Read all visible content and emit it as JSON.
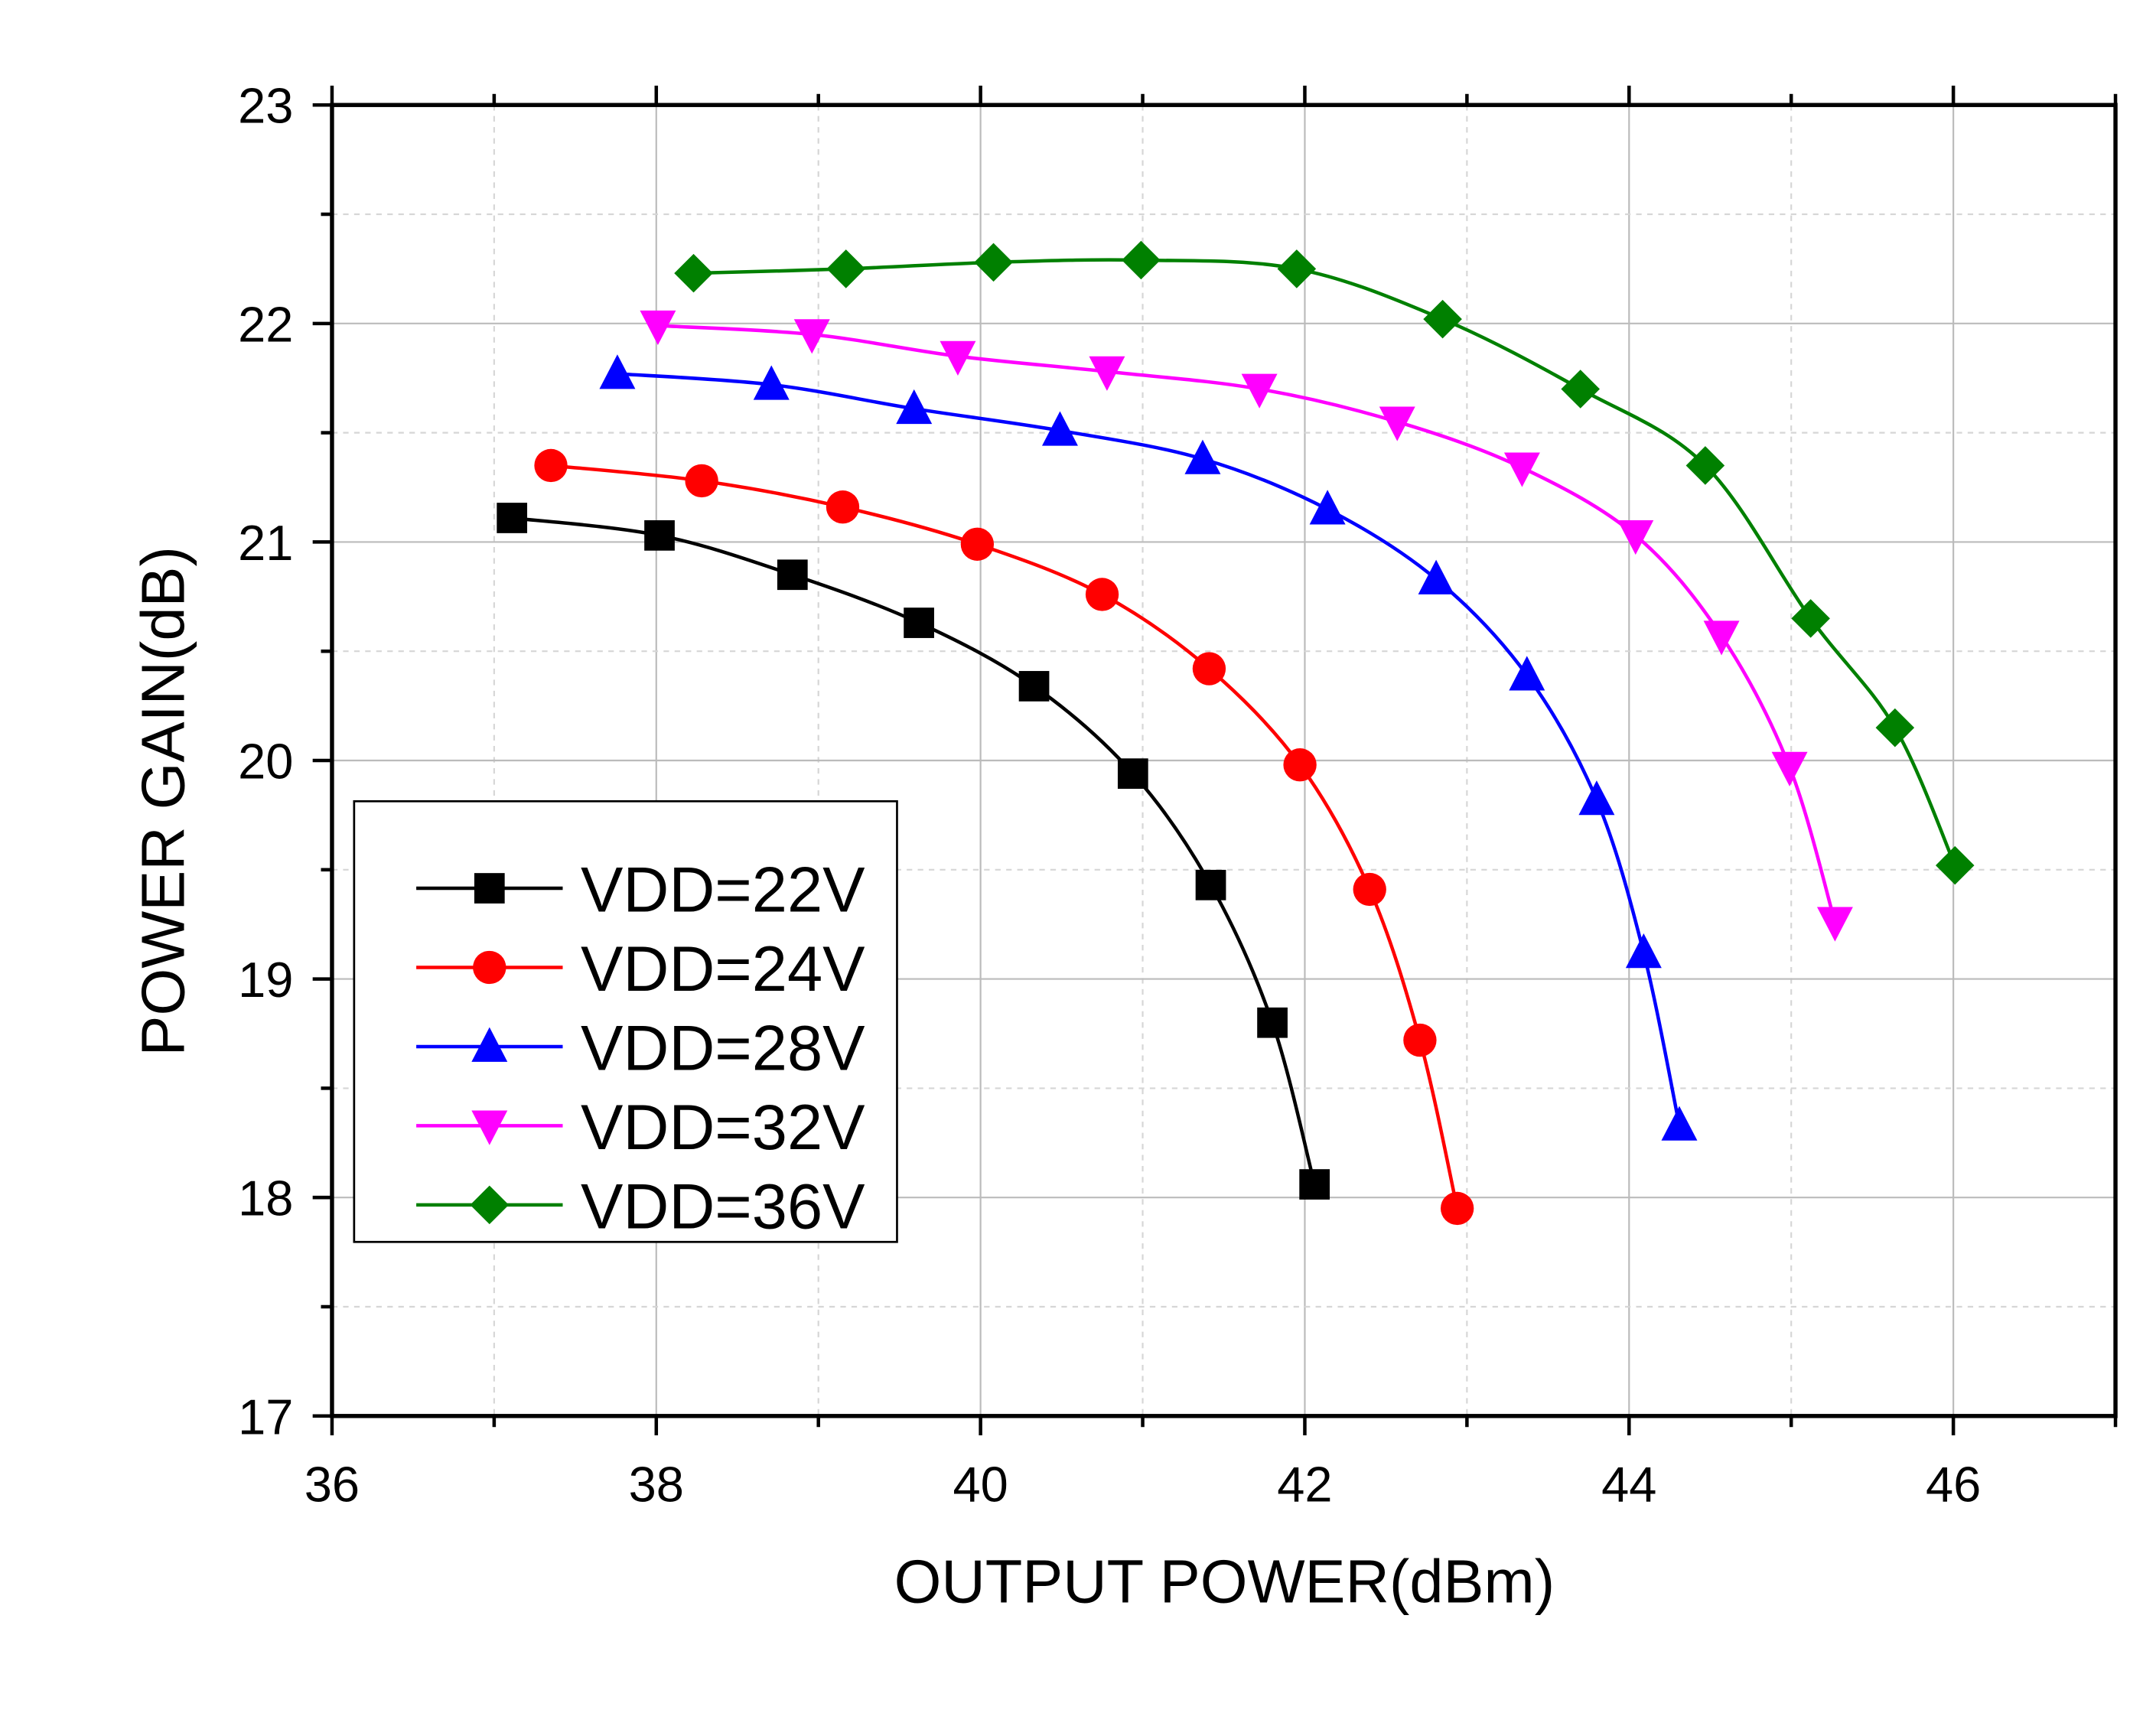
{
  "chart_data": {
    "type": "line",
    "title": "",
    "xlabel": "OUTPUT POWER(dBm)",
    "ylabel": "POWER GAIN(dB)",
    "xlim": [
      36,
      47
    ],
    "ylim": [
      17,
      23
    ],
    "xticks": [
      36,
      38,
      40,
      42,
      44,
      46
    ],
    "yticks": [
      17,
      18,
      19,
      20,
      21,
      22,
      23
    ],
    "grid": true,
    "legend_position": "lower-left",
    "series": [
      {
        "name": "VDD=22V",
        "color": "#000000",
        "marker": "square",
        "x": [
          37.11,
          38.02,
          38.84,
          39.62,
          40.33,
          40.94,
          41.42,
          41.8,
          42.06
        ],
        "y": [
          21.11,
          21.03,
          20.85,
          20.63,
          20.34,
          19.94,
          19.43,
          18.8,
          18.06
        ]
      },
      {
        "name": "VDD=24V",
        "color": "#ff0000",
        "marker": "circle",
        "x": [
          37.35,
          38.28,
          39.15,
          39.98,
          40.75,
          41.41,
          41.97,
          42.4,
          42.71,
          42.94
        ],
        "y": [
          21.35,
          21.28,
          21.16,
          20.99,
          20.76,
          20.42,
          19.98,
          19.41,
          18.72,
          17.95
        ]
      },
      {
        "name": "VDD=28V",
        "color": "#0000ff",
        "marker": "triangle-up",
        "x": [
          37.76,
          38.71,
          39.59,
          40.49,
          41.37,
          42.14,
          42.81,
          43.37,
          43.8,
          44.09,
          44.31
        ],
        "y": [
          21.77,
          21.72,
          21.61,
          21.51,
          21.38,
          21.15,
          20.83,
          20.39,
          19.82,
          19.12,
          18.33
        ]
      },
      {
        "name": "VDD=32V",
        "color": "#ff00ff",
        "marker": "triangle-down",
        "x": [
          38.01,
          38.96,
          39.86,
          40.78,
          41.72,
          42.57,
          43.34,
          44.04,
          44.57,
          44.99,
          45.27
        ],
        "y": [
          21.99,
          21.95,
          21.85,
          21.78,
          21.7,
          21.55,
          21.34,
          21.03,
          20.57,
          19.97,
          19.26
        ]
      },
      {
        "name": "VDD=36V",
        "color": "#008000",
        "marker": "diamond",
        "x": [
          38.23,
          39.17,
          40.08,
          40.99,
          41.95,
          42.85,
          43.7,
          44.47,
          45.12,
          45.64,
          46.01
        ],
        "y": [
          22.23,
          22.25,
          22.28,
          22.29,
          22.25,
          22.02,
          21.7,
          21.35,
          20.65,
          20.15,
          19.52
        ]
      }
    ]
  }
}
